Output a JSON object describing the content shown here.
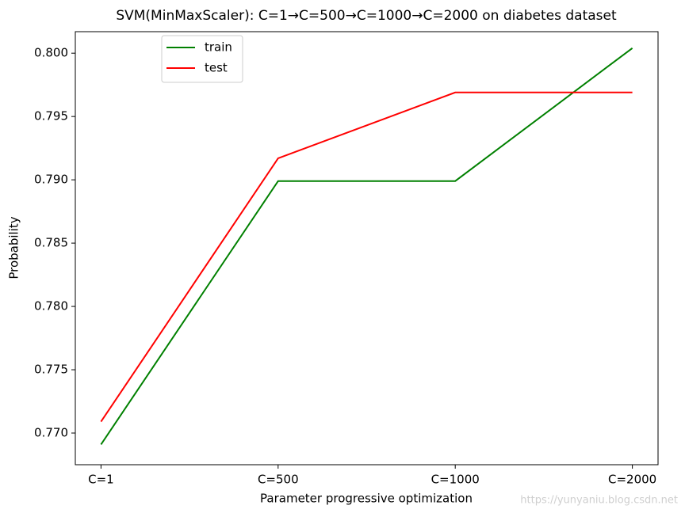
{
  "chart_data": {
    "type": "line",
    "title": "SVM(MinMaxScaler): C=1→C=500→C=1000→C=2000 on diabetes dataset",
    "x_label": "Parameter progressive optimization",
    "y_label": "Probability",
    "categories": [
      "C=1",
      "C=500",
      "C=1000",
      "C=2000"
    ],
    "series": [
      {
        "name": "train",
        "color": "#008000",
        "values": [
          0.7691,
          0.7899,
          0.7899,
          0.8004
        ]
      },
      {
        "name": "test",
        "color": "#ff0000",
        "values": [
          0.7709,
          0.7917,
          0.7969,
          0.7969
        ]
      }
    ],
    "ylim": [
      0.7675,
      0.8017
    ],
    "yticks": [
      {
        "value": 0.77,
        "label": "0.770"
      },
      {
        "value": 0.775,
        "label": "0.775"
      },
      {
        "value": 0.78,
        "label": "0.780"
      },
      {
        "value": 0.785,
        "label": "0.785"
      },
      {
        "value": 0.79,
        "label": "0.790"
      },
      {
        "value": 0.795,
        "label": "0.795"
      },
      {
        "value": 0.8,
        "label": "0.800"
      }
    ],
    "legend": "upper left",
    "grid": false,
    "watermark": "https://yunyaniu.blog.csdn.net"
  }
}
